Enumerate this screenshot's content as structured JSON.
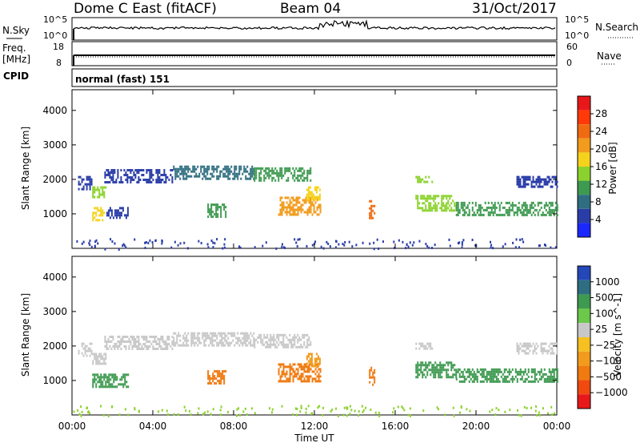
{
  "header": {
    "station": "Dome C East (fitACF)",
    "beam": "Beam 04",
    "date": "31/Oct/2017"
  },
  "top_panels": {
    "nsky_label": "N.Sky",
    "nsky_ticks_left": [
      "10^5",
      "10^0"
    ],
    "nsearch_label": "N.Search",
    "nsearch_ticks_right": [
      "10^5",
      "10^0"
    ],
    "freq_label": "Freq.",
    "freq_unit": "[MHz]",
    "freq_ticks": [
      "18",
      "8"
    ],
    "nave_label": "Nave",
    "nave_ticks": [
      "60",
      "0"
    ],
    "cpid_label": "CPID",
    "cpid_value": "normal (fast) 151"
  },
  "colorbars": {
    "power": {
      "label": "Power [dB]",
      "ticks": [
        "28",
        "24",
        "20",
        "16",
        "12",
        "8",
        "4"
      ],
      "colors": [
        "#e8181a",
        "#ff3a0a",
        "#f06a10",
        "#f29b1c",
        "#f5d21c",
        "#8cd22e",
        "#3e9a50",
        "#2f6e80",
        "#2a3ca8",
        "#1a28ff"
      ]
    },
    "velocity": {
      "label": "Velocity [m s^-1]",
      "ticks": [
        "1000",
        "500",
        "100",
        "25",
        "−25",
        "−100",
        "−500",
        "−1000"
      ],
      "colors": [
        "#2548b8",
        "#2f6e80",
        "#3e9a50",
        "#6cc84a",
        "#c8c8c8",
        "#f5c020",
        "#f29b1c",
        "#f07a10",
        "#f04a10",
        "#e8181a"
      ]
    }
  },
  "chart_data": [
    {
      "type": "heatmap",
      "panel": "power",
      "ylabel": "Slant Range [km]",
      "yticks": [
        1000,
        2000,
        3000,
        4000
      ],
      "ylim": [
        0,
        4600
      ],
      "xlim": [
        0,
        24
      ],
      "xticks": [
        "00:00",
        "04:00",
        "08:00",
        "12:00",
        "16:00",
        "20:00",
        "00:00"
      ],
      "bands": [
        {
          "t0": 0.3,
          "t1": 1.0,
          "r0": 1700,
          "r1": 2100,
          "c": "#2a3ca8"
        },
        {
          "t0": 1.0,
          "t1": 1.7,
          "r0": 1500,
          "r1": 1800,
          "c": "#8cd22e"
        },
        {
          "t0": 1.0,
          "t1": 1.6,
          "r0": 850,
          "r1": 1200,
          "c": "#f5d21c"
        },
        {
          "t0": 1.7,
          "t1": 2.8,
          "r0": 900,
          "r1": 1200,
          "c": "#2a3ca8"
        },
        {
          "t0": 1.6,
          "t1": 5.0,
          "r0": 1900,
          "r1": 2300,
          "c": "#2a3ca8"
        },
        {
          "t0": 5.0,
          "t1": 9.0,
          "r0": 2000,
          "r1": 2400,
          "c": "#2f6e80"
        },
        {
          "t0": 6.7,
          "t1": 7.6,
          "r0": 900,
          "r1": 1300,
          "c": "#3e9a50"
        },
        {
          "t0": 9.0,
          "t1": 11.8,
          "r0": 1950,
          "r1": 2350,
          "c": "#3e9a50"
        },
        {
          "t0": 10.2,
          "t1": 12.3,
          "r0": 1000,
          "r1": 1500,
          "c": "#f29b1c"
        },
        {
          "t0": 11.6,
          "t1": 12.3,
          "r0": 1400,
          "r1": 1800,
          "c": "#f5d21c"
        },
        {
          "t0": 14.7,
          "t1": 15.0,
          "r0": 900,
          "r1": 1400,
          "c": "#f06a10"
        },
        {
          "t0": 17.0,
          "t1": 19.0,
          "r0": 1100,
          "r1": 1550,
          "c": "#8cd22e"
        },
        {
          "t0": 19.0,
          "t1": 24.0,
          "r0": 1000,
          "r1": 1350,
          "c": "#3e9a50"
        },
        {
          "t0": 17.0,
          "t1": 17.8,
          "r0": 1900,
          "r1": 2100,
          "c": "#8cd22e"
        },
        {
          "t0": 22.0,
          "t1": 24.0,
          "r0": 1800,
          "r1": 2100,
          "c": "#2a3ca8"
        }
      ]
    },
    {
      "type": "heatmap",
      "panel": "velocity",
      "ylabel": "Slant Range [km]",
      "yticks": [
        1000,
        2000,
        3000,
        4000
      ],
      "ylim": [
        0,
        4600
      ],
      "xlim": [
        0,
        24
      ],
      "xticks": [
        "00:00",
        "04:00",
        "08:00",
        "12:00",
        "16:00",
        "20:00",
        "00:00"
      ],
      "bands": [
        {
          "t0": 0.3,
          "t1": 1.0,
          "r0": 1700,
          "r1": 2100,
          "c": "#c8c8c8"
        },
        {
          "t0": 1.0,
          "t1": 1.7,
          "r0": 1500,
          "r1": 1800,
          "c": "#c8c8c8"
        },
        {
          "t0": 1.0,
          "t1": 2.8,
          "r0": 850,
          "r1": 1200,
          "c": "#3e9a50"
        },
        {
          "t0": 1.6,
          "t1": 5.0,
          "r0": 1900,
          "r1": 2300,
          "c": "#c8c8c8"
        },
        {
          "t0": 5.0,
          "t1": 9.0,
          "r0": 2000,
          "r1": 2400,
          "c": "#c8c8c8"
        },
        {
          "t0": 6.7,
          "t1": 7.6,
          "r0": 900,
          "r1": 1300,
          "c": "#f07a10"
        },
        {
          "t0": 9.0,
          "t1": 11.8,
          "r0": 1950,
          "r1": 2350,
          "c": "#c8c8c8"
        },
        {
          "t0": 10.2,
          "t1": 12.3,
          "r0": 1000,
          "r1": 1500,
          "c": "#f07a10"
        },
        {
          "t0": 11.6,
          "t1": 12.3,
          "r0": 1400,
          "r1": 1800,
          "c": "#f29b1c"
        },
        {
          "t0": 14.7,
          "t1": 15.0,
          "r0": 900,
          "r1": 1400,
          "c": "#f07a10"
        },
        {
          "t0": 17.0,
          "t1": 19.0,
          "r0": 1100,
          "r1": 1550,
          "c": "#3e9a50"
        },
        {
          "t0": 19.0,
          "t1": 24.0,
          "r0": 1000,
          "r1": 1350,
          "c": "#3e9a50"
        },
        {
          "t0": 17.0,
          "t1": 17.8,
          "r0": 1900,
          "r1": 2100,
          "c": "#c8c8c8"
        },
        {
          "t0": 22.0,
          "t1": 24.0,
          "r0": 1800,
          "r1": 2100,
          "c": "#c8c8c8"
        }
      ]
    }
  ],
  "xaxis_label": "Time UT"
}
